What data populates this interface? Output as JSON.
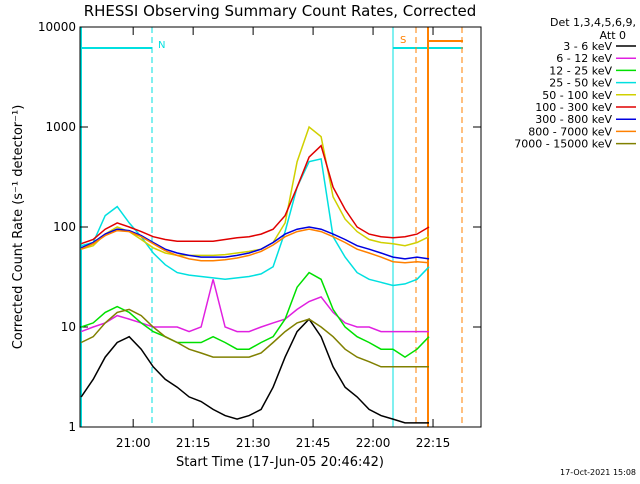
{
  "chart_data": {
    "type": "line",
    "title": "RHESSI Observing Summary Count Rates, Corrected",
    "xlabel": "Start Time (17-Jun-05 20:46:42)",
    "ylabel": "Corrected Count Rate (s⁻¹ detector⁻¹)",
    "legend_title": [
      "Det 1,3,4,5,6,9,",
      "Att 0"
    ],
    "flags": [
      "N",
      "S"
    ],
    "footer": "17-Oct-2021 15:08",
    "log_y": true,
    "xlim": [
      46.7,
      147.0
    ],
    "xticks": [
      {
        "value": 60,
        "label": "21:00"
      },
      {
        "value": 75,
        "label": "21:15"
      },
      {
        "value": 90,
        "label": "21:30"
      },
      {
        "value": 105,
        "label": "21:45"
      },
      {
        "value": 120,
        "label": "22:00"
      },
      {
        "value": 135,
        "label": "22:15"
      }
    ],
    "ylim": [
      1,
      10000
    ],
    "yticks": [
      1,
      10,
      100,
      1000,
      10000
    ],
    "x": [
      47,
      50,
      53,
      56,
      59,
      62,
      65,
      68,
      71,
      74,
      77,
      80,
      83,
      86,
      89,
      92,
      95,
      98,
      101,
      104,
      107,
      110,
      113,
      116,
      119,
      122,
      125,
      128,
      131,
      134
    ],
    "series": [
      {
        "name": "3 - 6 keV",
        "color": "#000000",
        "values": [
          2,
          3,
          5,
          7,
          8,
          6,
          4,
          3,
          2.5,
          2,
          1.8,
          1.5,
          1.3,
          1.2,
          1.3,
          1.5,
          2.5,
          5,
          9,
          12,
          8,
          4,
          2.5,
          2,
          1.5,
          1.3,
          1.2,
          1.1,
          1.1,
          1.1
        ]
      },
      {
        "name": "6 - 12 keV",
        "color": "#e020e0",
        "values": [
          9,
          10,
          11,
          13,
          12,
          11,
          10,
          10,
          10,
          9,
          10,
          30,
          10,
          9,
          9,
          10,
          11,
          12,
          15,
          18,
          20,
          14,
          11,
          10,
          10,
          9,
          9,
          9,
          9,
          9
        ]
      },
      {
        "name": "12 - 25 keV",
        "color": "#00e000",
        "values": [
          10,
          11,
          14,
          16,
          14,
          11,
          9,
          8,
          7,
          7,
          7,
          8,
          7,
          6,
          6,
          7,
          8,
          12,
          25,
          35,
          30,
          15,
          10,
          8,
          7,
          6,
          6,
          5,
          6,
          8
        ]
      },
      {
        "name": "25 - 50 keV",
        "color": "#00e0e0",
        "values": [
          65,
          70,
          130,
          160,
          110,
          80,
          55,
          42,
          35,
          33,
          32,
          31,
          30,
          31,
          32,
          34,
          40,
          90,
          250,
          450,
          480,
          80,
          50,
          35,
          30,
          28,
          26,
          27,
          30,
          40
        ]
      },
      {
        "name": "50 - 100 keV",
        "color": "#d0d000",
        "values": [
          60,
          65,
          85,
          100,
          90,
          75,
          62,
          55,
          52,
          52,
          52,
          52,
          53,
          55,
          57,
          60,
          70,
          110,
          450,
          1000,
          800,
          200,
          120,
          90,
          75,
          70,
          68,
          65,
          70,
          80
        ]
      },
      {
        "name": "100 - 300 keV",
        "color": "#e00000",
        "values": [
          68,
          75,
          95,
          110,
          100,
          90,
          80,
          75,
          72,
          72,
          72,
          72,
          75,
          78,
          80,
          85,
          95,
          130,
          250,
          500,
          650,
          250,
          150,
          100,
          85,
          80,
          78,
          80,
          85,
          100
        ]
      },
      {
        "name": "300 - 800 keV",
        "color": "#0000e0",
        "values": [
          62,
          70,
          85,
          95,
          92,
          82,
          70,
          60,
          55,
          52,
          50,
          50,
          50,
          52,
          55,
          60,
          70,
          85,
          95,
          100,
          95,
          85,
          75,
          65,
          60,
          55,
          50,
          48,
          50,
          48
        ]
      },
      {
        "name": "800 - 7000 keV",
        "color": "#ff8000",
        "values": [
          60,
          68,
          82,
          92,
          90,
          80,
          68,
          58,
          52,
          48,
          46,
          46,
          47,
          49,
          52,
          57,
          66,
          80,
          90,
          95,
          90,
          80,
          70,
          60,
          55,
          50,
          45,
          44,
          45,
          44
        ]
      },
      {
        "name": "7000 - 15000 keV",
        "color": "#808000",
        "values": [
          7,
          8,
          11,
          14,
          15,
          13,
          10,
          8,
          7,
          6,
          5.5,
          5,
          5,
          5,
          5,
          5.5,
          7,
          9,
          11,
          12,
          10,
          8,
          6,
          5,
          4.5,
          4,
          4,
          4,
          4,
          4
        ]
      }
    ]
  }
}
